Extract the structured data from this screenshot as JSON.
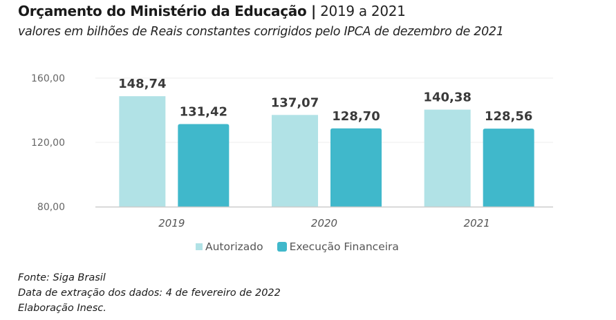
{
  "header": {
    "title_bold": "Orçamento do Ministério da Educação |",
    "title_rest": " 2019 a 2021",
    "subtitle": "valores em bilhões de Reais constantes corrigidos pelo IPCA de dezembro de 2021"
  },
  "chart_data": {
    "type": "bar",
    "title": "Orçamento do Ministério da Educação | 2019 a 2021",
    "subtitle": "valores em bilhões de Reais constantes corrigidos pelo IPCA de dezembro de 2021",
    "xlabel": "",
    "ylabel": "",
    "categories": [
      "2019",
      "2020",
      "2021"
    ],
    "series": [
      {
        "name": "Autorizado",
        "color": "#b1e2e6",
        "values": [
          148.74,
          137.07,
          140.38
        ],
        "labels": [
          "148,74",
          "137,07",
          "140,38"
        ]
      },
      {
        "name": "Execução Financeira",
        "color": "#40b8cb",
        "values": [
          131.42,
          128.7,
          128.56
        ],
        "labels": [
          "131,42",
          "128,70",
          "128,56"
        ]
      }
    ],
    "ylim": [
      80,
      160
    ],
    "yticks": [
      80,
      120,
      160
    ],
    "ytick_labels": [
      "80,00",
      "120,00",
      "160,00"
    ],
    "grid": true,
    "legend_position": "bottom-center"
  },
  "legend": {
    "items": [
      "Autorizado",
      "Execução Financeira"
    ]
  },
  "footer": {
    "lines": [
      "Fonte: Siga Brasil",
      "Data de extração dos dados: 4 de fevereiro de 2022",
      "Elaboração Inesc."
    ]
  }
}
